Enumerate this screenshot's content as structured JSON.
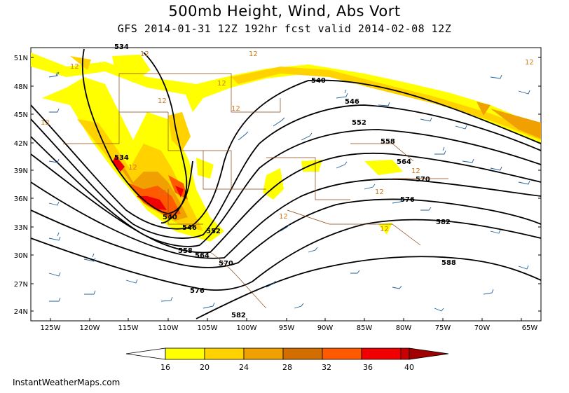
{
  "title": "500mb Height, Wind, Abs Vort",
  "subtitle": "GFS 2014-01-31 12Z 192hr fcst valid 2014-02-08 12Z",
  "footer": "InstantWeatherMaps.com",
  "map": {
    "lat_labels": [
      "51N",
      "48N",
      "45N",
      "42N",
      "39N",
      "36N",
      "33N",
      "30N",
      "27N",
      "24N"
    ],
    "lon_labels": [
      "125W",
      "120W",
      "115W",
      "110W",
      "105W",
      "100W",
      "95W",
      "90W",
      "85W",
      "80W",
      "75W",
      "70W",
      "65W"
    ],
    "height_contours": [
      "534",
      "540",
      "546",
      "552",
      "558",
      "564",
      "570",
      "576",
      "582",
      "588"
    ],
    "vorticity_label": "12"
  },
  "legend": {
    "ticks": [
      "16",
      "20",
      "24",
      "28",
      "32",
      "36",
      "40"
    ],
    "colors": [
      "#ffffff",
      "#ffff00",
      "#ffd200",
      "#f0a000",
      "#d26e00",
      "#ff5a00",
      "#f00000",
      "#c80000",
      "#a00000"
    ]
  },
  "colors": {
    "height_line": "#000000",
    "wind_barb": "#1f5f99",
    "border": "#8b4513",
    "vort_12": "#cc7a1a"
  }
}
